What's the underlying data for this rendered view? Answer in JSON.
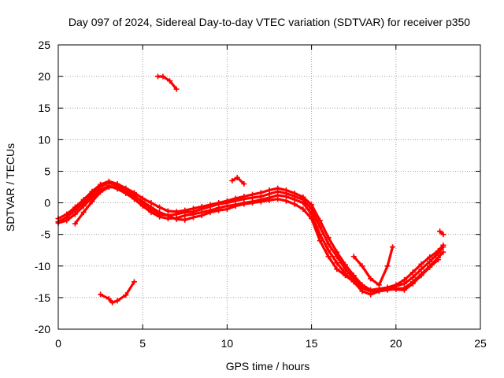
{
  "chart_data": {
    "type": "scatter",
    "title": "Day 097 of 2024, Sidereal Day-to-day VTEC variation (SDTVAR) for receiver p350",
    "xlabel": "GPS time / hours",
    "ylabel": "SDTVAR / TECUs",
    "xlim": [
      0,
      25
    ],
    "ylim": [
      -20,
      25
    ],
    "xticks": [
      0,
      5,
      10,
      15,
      20,
      25
    ],
    "yticks": [
      -20,
      -15,
      -10,
      -5,
      0,
      5,
      10,
      15,
      20,
      25
    ],
    "xtick_labels": [
      "0",
      "5",
      "10",
      "15",
      "20",
      "25"
    ],
    "ytick_labels": [
      "-20",
      "-15",
      "-10",
      "-5",
      "0",
      "5",
      "10",
      "15",
      "20",
      "25"
    ],
    "grid": true,
    "marker": "plus",
    "series_color": "#ff0000",
    "series": [
      {
        "name": "track-1",
        "x": [
          0.0,
          0.5,
          1.0,
          1.5,
          2.0,
          2.5,
          3.0,
          3.5,
          4.0,
          4.5,
          5.0,
          5.5,
          6.0,
          6.5,
          7.0,
          7.5,
          8.0,
          8.5,
          9.0,
          9.5,
          10.0,
          10.5,
          11.0,
          11.5,
          12.0,
          12.5,
          13.0,
          13.5,
          14.0,
          14.5,
          15.0,
          15.5,
          16.0,
          16.5,
          17.0,
          17.5,
          18.0,
          18.5,
          19.0,
          19.5,
          20.0,
          20.5,
          21.0,
          21.5,
          22.0,
          22.5,
          22.8
        ],
        "y": [
          -3.0,
          -2.3,
          -1.2,
          0.0,
          1.3,
          2.5,
          3.2,
          2.6,
          2.0,
          1.2,
          0.0,
          -1.0,
          -1.8,
          -2.0,
          -1.8,
          -1.5,
          -1.4,
          -1.0,
          -0.6,
          -0.2,
          0.0,
          0.3,
          0.6,
          0.8,
          1.0,
          1.4,
          1.8,
          1.5,
          1.0,
          0.5,
          -1.0,
          -3.8,
          -6.5,
          -8.5,
          -10.5,
          -12.0,
          -13.5,
          -14.0,
          -13.8,
          -13.5,
          -13.2,
          -12.8,
          -11.8,
          -10.5,
          -9.3,
          -8.0,
          -7.0
        ]
      },
      {
        "name": "track-2",
        "x": [
          0.0,
          0.5,
          1.0,
          1.5,
          2.0,
          2.5,
          3.0,
          3.5,
          4.0,
          4.5,
          5.0,
          5.5,
          6.0,
          6.5,
          7.0,
          7.5,
          8.0,
          8.5,
          9.0,
          9.5,
          10.0,
          10.5,
          11.0,
          11.5,
          12.0,
          12.5,
          13.0,
          13.5,
          14.0,
          14.5,
          15.0,
          15.5,
          16.0,
          16.5,
          17.0,
          17.5,
          18.0,
          18.5,
          19.0,
          19.5,
          20.0,
          20.5,
          21.0,
          21.5,
          22.0,
          22.5,
          22.8
        ],
        "y": [
          -2.5,
          -1.8,
          -0.7,
          0.5,
          1.8,
          2.9,
          3.4,
          3.0,
          2.3,
          1.6,
          0.7,
          0.0,
          -0.7,
          -1.3,
          -1.4,
          -1.2,
          -0.9,
          -0.6,
          -0.3,
          0.0,
          0.3,
          0.7,
          1.0,
          1.3,
          1.6,
          2.0,
          2.3,
          2.0,
          1.5,
          0.9,
          -0.3,
          -2.8,
          -5.5,
          -7.8,
          -9.8,
          -11.5,
          -13.0,
          -13.8,
          -13.6,
          -13.4,
          -13.0,
          -12.2,
          -11.0,
          -9.7,
          -8.6,
          -7.6,
          -6.7
        ]
      },
      {
        "name": "track-3",
        "x": [
          0.0,
          0.5,
          1.0,
          1.5,
          2.0,
          2.5,
          3.0,
          3.5,
          4.0,
          4.5,
          5.0,
          5.5,
          6.0,
          6.5,
          7.0,
          7.5,
          8.0,
          8.5,
          9.0,
          9.5,
          10.0,
          10.5,
          11.0,
          11.5,
          12.0,
          12.5,
          13.0,
          13.5,
          14.0,
          14.5,
          15.0,
          15.5,
          16.0,
          16.5,
          17.0,
          17.5,
          18.0,
          18.5,
          19.0,
          19.5,
          20.0,
          20.5,
          21.0,
          21.5,
          22.0,
          22.5,
          22.8
        ],
        "y": [
          -3.2,
          -2.8,
          -1.8,
          -0.5,
          0.8,
          2.0,
          2.7,
          2.2,
          1.5,
          0.6,
          -0.5,
          -1.5,
          -2.2,
          -2.5,
          -2.4,
          -2.0,
          -1.8,
          -1.5,
          -1.2,
          -0.8,
          -0.5,
          -0.3,
          0.0,
          0.2,
          0.5,
          0.8,
          1.2,
          1.0,
          0.5,
          0.0,
          -1.8,
          -5.0,
          -7.5,
          -9.5,
          -11.2,
          -12.5,
          -14.0,
          -14.5,
          -14.0,
          -13.8,
          -13.6,
          -13.5,
          -12.5,
          -11.3,
          -10.0,
          -8.7,
          -7.8
        ]
      },
      {
        "name": "track-4",
        "x": [
          1.0,
          1.5,
          2.0,
          2.5,
          3.0,
          3.5,
          4.0,
          4.5,
          5.0,
          5.5,
          6.0,
          6.5,
          7.0,
          7.5,
          8.0,
          8.5,
          9.0,
          9.5,
          10.0,
          10.5,
          11.0,
          11.5,
          12.0,
          12.5,
          13.0,
          13.5,
          14.0,
          14.5,
          15.0,
          15.5,
          16.0,
          16.5,
          17.0,
          17.5,
          18.0,
          18.5,
          19.0,
          19.5,
          20.0,
          20.5,
          21.0,
          21.5,
          22.0,
          22.5
        ],
        "y": [
          -3.3,
          -1.5,
          0.2,
          1.7,
          2.5,
          2.4,
          1.8,
          1.0,
          0.2,
          -0.7,
          -1.5,
          -2.0,
          -2.6,
          -2.7,
          -2.3,
          -2.0,
          -1.5,
          -1.2,
          -1.0,
          -0.5,
          -0.2,
          0.0,
          0.2,
          0.4,
          0.6,
          0.3,
          -0.2,
          -1.0,
          -2.5,
          -6.0,
          -8.5,
          -10.5,
          -11.5,
          -12.5,
          -13.5,
          -14.0,
          -13.8,
          -13.6,
          -13.7,
          -13.8,
          -12.8,
          -11.5,
          -10.2,
          -9.0
        ]
      },
      {
        "name": "track-5",
        "x": [
          17.5,
          18.0,
          18.5,
          19.0,
          19.5,
          19.8
        ],
        "y": [
          -8.5,
          -10.0,
          -12.0,
          -13.0,
          -10.0,
          -7.0
        ]
      },
      {
        "name": "track-6",
        "x": [
          2.5,
          3.0,
          3.2,
          3.5,
          4.0,
          4.5
        ],
        "y": [
          -14.5,
          -15.2,
          -15.8,
          -15.5,
          -14.6,
          -12.5
        ]
      },
      {
        "name": "track-7",
        "x": [
          5.9,
          6.2,
          6.6,
          7.0
        ],
        "y": [
          20.0,
          20.0,
          19.3,
          18.0
        ]
      },
      {
        "name": "track-8",
        "x": [
          10.3,
          10.6,
          11.0
        ],
        "y": [
          3.5,
          4.0,
          3.0
        ]
      },
      {
        "name": "track-9",
        "x": [
          22.6,
          22.8
        ],
        "y": [
          -4.5,
          -5.0
        ]
      }
    ]
  }
}
